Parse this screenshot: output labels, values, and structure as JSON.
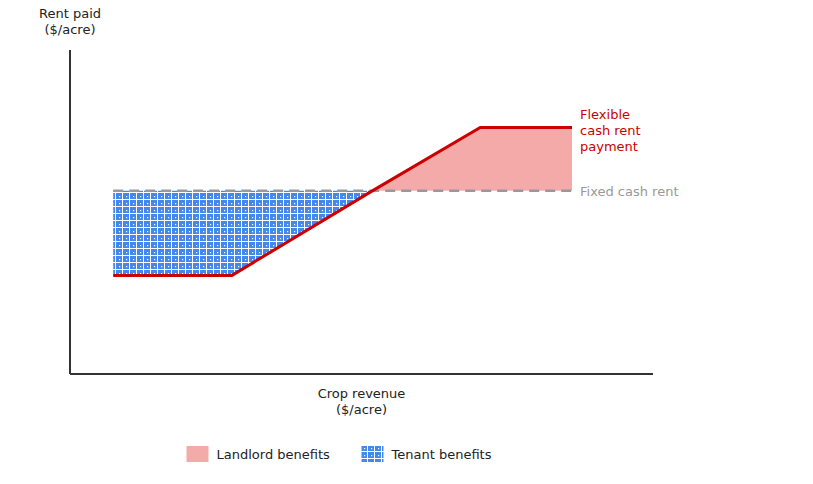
{
  "chart_data": {
    "type": "line",
    "xlabel": "Crop revenue\n($/acre)",
    "ylabel": "Rent paid\n($/acre)",
    "xlim": [
      0.0,
      1.08
    ],
    "ylim": [
      0.0,
      0.92
    ],
    "tick_labels": false,
    "grid": false,
    "legend": "bottom",
    "series": [
      {
        "name": "Landlord benefits",
        "type": "area",
        "color": "#f5aaaa",
        "x": [
          0.56,
          0.76,
          0.93
        ],
        "upper": [
          0.52,
          0.7,
          0.7
        ],
        "lower": [
          0.52,
          0.52,
          0.52
        ]
      },
      {
        "name": "Tenant benefits",
        "type": "area",
        "color": "#4488ee",
        "x": [
          0.08,
          0.3,
          0.56
        ],
        "upper": [
          0.52,
          0.52,
          0.52
        ],
        "lower": [
          0.28,
          0.28,
          0.52
        ]
      },
      {
        "type": "line",
        "label": "Fixed cash rent",
        "color": "#999999",
        "line_style": "dashed",
        "x": [
          0.08,
          0.93
        ],
        "values": [
          0.52,
          0.52
        ]
      },
      {
        "type": "line",
        "label": "Flexible\ncash rent\npayment",
        "color": "#cc0000",
        "line_style": "solid",
        "x": [
          0.08,
          0.3,
          0.56,
          0.76,
          0.93
        ],
        "values": [
          0.28,
          0.28,
          0.52,
          0.7,
          0.7
        ]
      }
    ]
  }
}
